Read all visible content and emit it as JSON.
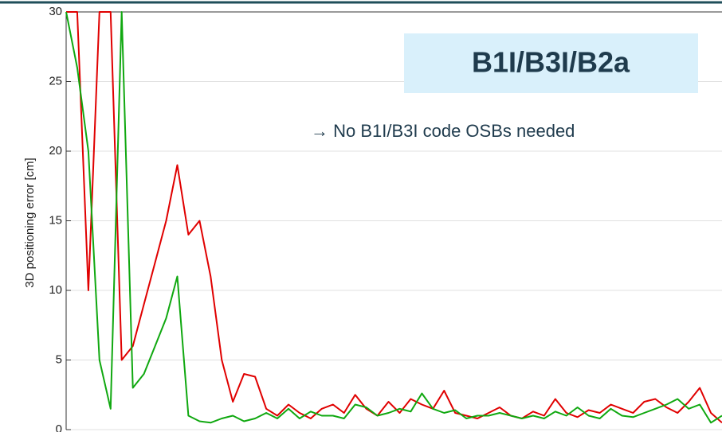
{
  "chart_data": {
    "type": "line",
    "ylabel": "3D positioning error [cm]",
    "annotation_box": "B1I/B3I/B2a",
    "annotation": "→ No B1I/B3I code OSBs needed",
    "ylim": [
      0,
      30
    ],
    "yticks": [
      0,
      5,
      10,
      15,
      20,
      25,
      30
    ],
    "grid": true,
    "series": [
      {
        "color": "#e00000",
        "values": [
          30,
          30,
          10,
          30,
          30,
          5,
          6,
          9,
          12,
          15,
          19,
          14,
          15,
          11,
          5,
          2,
          4,
          3.8,
          1.5,
          1,
          1.8,
          1.2,
          0.8,
          1.5,
          1.8,
          1.2,
          2.5,
          1.5,
          1,
          2,
          1.2,
          2.2,
          1.8,
          1.5,
          2.8,
          1.2,
          1,
          0.8,
          1.2,
          1.6,
          1,
          0.8,
          1.3,
          1,
          2.2,
          1.2,
          0.9,
          1.4,
          1.2,
          1.8,
          1.5,
          1.2,
          2,
          2.2,
          1.6,
          1.2,
          2,
          3,
          1.2,
          0.5
        ]
      },
      {
        "color": "#10a810",
        "values": [
          30,
          26,
          20,
          5,
          1.5,
          30,
          3,
          4,
          6,
          8,
          11,
          1,
          0.6,
          0.5,
          0.8,
          1,
          0.6,
          0.8,
          1.2,
          0.8,
          1.5,
          0.8,
          1.3,
          1,
          1,
          0.8,
          1.8,
          1.6,
          1,
          1.2,
          1.5,
          1.3,
          2.6,
          1.5,
          1.2,
          1.4,
          0.8,
          1,
          1,
          1.2,
          1,
          0.8,
          1,
          0.8,
          1.3,
          1,
          1.6,
          1,
          0.8,
          1.5,
          1,
          0.9,
          1.2,
          1.5,
          1.8,
          2.2,
          1.5,
          1.8,
          0.5,
          1
        ]
      }
    ]
  }
}
